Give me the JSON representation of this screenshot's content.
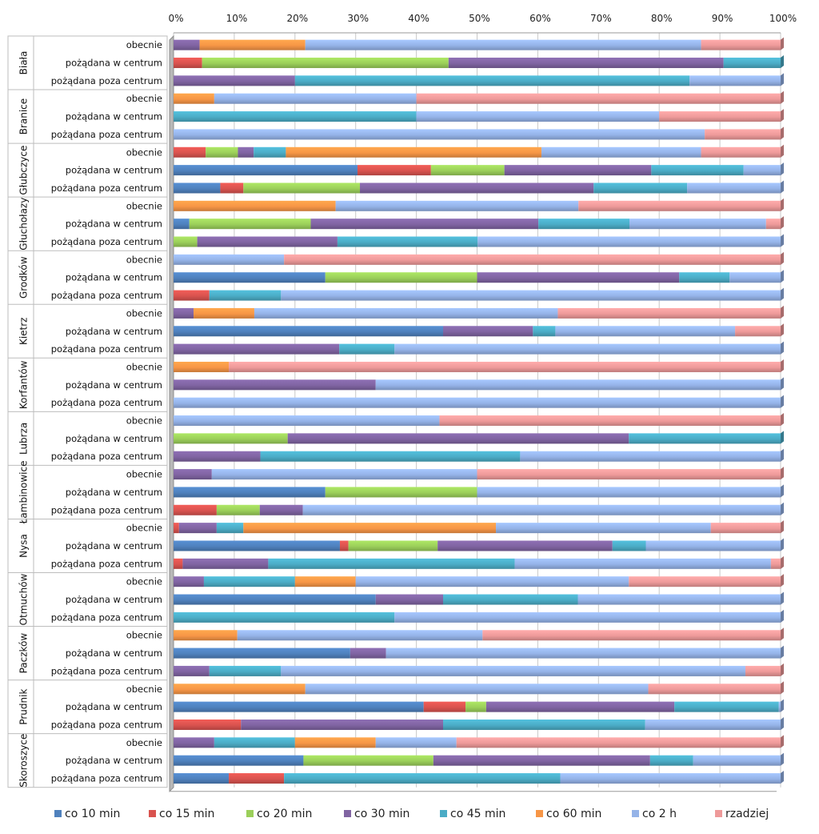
{
  "chart_data": {
    "type": "bar",
    "orientation": "horizontal",
    "stacked": "percent",
    "xlim": [
      0,
      100
    ],
    "x_ticks": [
      "0%",
      "10%",
      "20%",
      "30%",
      "40%",
      "50%",
      "60%",
      "70%",
      "80%",
      "90%",
      "100%"
    ],
    "legend_position": "bottom",
    "grid": true,
    "series": [
      {
        "name": "co 10 min",
        "color": "#4f81bd"
      },
      {
        "name": "co 15 min",
        "color": "#d9534f"
      },
      {
        "name": "co 20 min",
        "color": "#9bcf5a"
      },
      {
        "name": "co 30 min",
        "color": "#8064a2"
      },
      {
        "name": "co 45 min",
        "color": "#4bacc6"
      },
      {
        "name": "co 60 min",
        "color": "#f79646"
      },
      {
        "name": "co 2 h",
        "color": "#95b3e8"
      },
      {
        "name": "rzadziej",
        "color": "#ee9a9a"
      }
    ],
    "groups": [
      {
        "name": "Biała",
        "rows": [
          {
            "label": "obecnie",
            "values": [
              0,
              0,
              0,
              4.3,
              0,
              17.4,
              65.2,
              13.1
            ]
          },
          {
            "label": "pożądana w centrum",
            "values": [
              0,
              4.7,
              40.6,
              45.3,
              9.4,
              0,
              0,
              0
            ]
          },
          {
            "label": "pożądana poza centrum",
            "values": [
              0,
              0,
              0,
              20.0,
              65.0,
              0,
              15.0,
              0
            ]
          }
        ]
      },
      {
        "name": "Branice",
        "rows": [
          {
            "label": "obecnie",
            "values": [
              0,
              0,
              0,
              0,
              0,
              6.7,
              33.3,
              60.0
            ]
          },
          {
            "label": "pożądana w centrum",
            "values": [
              0,
              0,
              0,
              0,
              40.0,
              0,
              40.0,
              20.0
            ]
          },
          {
            "label": "pożądana poza centrum",
            "values": [
              0,
              0,
              0,
              0,
              0,
              0,
              87.5,
              12.5
            ]
          }
        ]
      },
      {
        "name": "Głubczyce",
        "rows": [
          {
            "label": "obecnie",
            "values": [
              0,
              5.3,
              5.3,
              2.6,
              5.3,
              42.1,
              26.3,
              13.1
            ]
          },
          {
            "label": "pożądana w centrum",
            "values": [
              30.3,
              12.1,
              12.1,
              24.2,
              15.2,
              0,
              6.1,
              0
            ]
          },
          {
            "label": "pożądana poza centrum",
            "values": [
              7.7,
              3.8,
              19.2,
              38.5,
              15.4,
              0,
              15.4,
              0
            ]
          }
        ]
      },
      {
        "name": "Głuchołazy",
        "rows": [
          {
            "label": "obecnie",
            "values": [
              0,
              0,
              0,
              0,
              0,
              26.7,
              40.0,
              33.3
            ]
          },
          {
            "label": "pożądana w centrum",
            "values": [
              2.6,
              0,
              20.0,
              37.5,
              15.0,
              0,
              22.5,
              2.4
            ]
          },
          {
            "label": "pożądana poza centrum",
            "values": [
              0,
              0,
              3.9,
              23.1,
              23.1,
              0,
              49.9,
              0
            ]
          }
        ]
      },
      {
        "name": "Grodków",
        "rows": [
          {
            "label": "obecnie",
            "values": [
              0,
              0,
              0,
              0,
              0,
              0,
              18.2,
              81.8
            ]
          },
          {
            "label": "pożądana w centrum",
            "values": [
              25.0,
              0,
              25.0,
              33.3,
              8.3,
              0,
              8.4,
              0
            ]
          },
          {
            "label": "pożądana poza centrum",
            "values": [
              0,
              5.9,
              0,
              0,
              11.8,
              0,
              82.3,
              0
            ]
          }
        ]
      },
      {
        "name": "Kietrz",
        "rows": [
          {
            "label": "obecnie",
            "values": [
              0,
              0,
              0,
              3.3,
              0,
              10.0,
              50.0,
              36.7
            ]
          },
          {
            "label": "pożądana w centrum",
            "values": [
              44.4,
              0,
              0,
              14.8,
              3.7,
              0,
              29.6,
              7.5
            ]
          },
          {
            "label": "pożądana poza centrum",
            "values": [
              0,
              0,
              0,
              27.3,
              9.1,
              0,
              63.6,
              0
            ]
          }
        ]
      },
      {
        "name": "Korfantów",
        "rows": [
          {
            "label": "obecnie",
            "values": [
              0,
              0,
              0,
              0,
              0,
              9.1,
              0,
              90.9
            ]
          },
          {
            "label": "pożądana w centrum",
            "values": [
              0,
              0,
              0,
              33.3,
              0,
              0,
              66.7,
              0
            ]
          },
          {
            "label": "pożądana poza centrum",
            "values": [
              0,
              0,
              0,
              0,
              0,
              0,
              100,
              0
            ]
          }
        ]
      },
      {
        "name": "Lubrza",
        "rows": [
          {
            "label": "obecnie",
            "values": [
              0,
              0,
              0,
              0,
              0,
              0,
              43.8,
              56.2
            ]
          },
          {
            "label": "pożądana w centrum",
            "values": [
              0,
              0,
              18.8,
              56.2,
              25.0,
              0,
              0,
              0
            ]
          },
          {
            "label": "pożądana poza centrum",
            "values": [
              0,
              0,
              0,
              14.3,
              42.8,
              0,
              42.9,
              0
            ]
          }
        ]
      },
      {
        "name": "Łambinowice",
        "rows": [
          {
            "label": "obecnie",
            "values": [
              0,
              0,
              0,
              6.3,
              0,
              0,
              43.7,
              50.0
            ]
          },
          {
            "label": "pożądana w centrum",
            "values": [
              25.0,
              0,
              25.0,
              0,
              0,
              0,
              50.0,
              0
            ]
          },
          {
            "label": "pożądana poza centrum",
            "values": [
              0,
              7.1,
              7.1,
              7.1,
              0,
              0,
              78.7,
              0
            ]
          }
        ]
      },
      {
        "name": "Nysa",
        "rows": [
          {
            "label": "obecnie",
            "values": [
              0,
              0.9,
              0,
              6.2,
              4.4,
              41.6,
              35.4,
              11.5
            ]
          },
          {
            "label": "pożądana w centrum",
            "values": [
              27.4,
              1.4,
              14.7,
              28.8,
              5.5,
              0,
              22.2,
              0
            ]
          },
          {
            "label": "pożądana poza centrum",
            "values": [
              0,
              1.5,
              0,
              14.1,
              40.6,
              0,
              42.2,
              1.6
            ]
          }
        ]
      },
      {
        "name": "Otmuchów",
        "rows": [
          {
            "label": "obecnie",
            "values": [
              0,
              0,
              0,
              5.0,
              15.0,
              10.0,
              45.0,
              25.0
            ]
          },
          {
            "label": "pożądana w centrum",
            "values": [
              33.3,
              0,
              0,
              11.1,
              22.2,
              0,
              33.4,
              0
            ]
          },
          {
            "label": "pożądana poza centrum",
            "values": [
              0,
              0,
              0,
              0,
              36.4,
              0,
              63.6,
              0
            ]
          }
        ]
      },
      {
        "name": "Paczków",
        "rows": [
          {
            "label": "obecnie",
            "values": [
              0,
              0,
              0,
              0,
              0,
              10.5,
              40.4,
              49.1
            ]
          },
          {
            "label": "pożądana w centrum",
            "values": [
              29.1,
              0,
              0,
              5.9,
              0,
              0,
              65.0,
              0
            ]
          },
          {
            "label": "pożądana poza centrum",
            "values": [
              0,
              0,
              0,
              5.9,
              11.8,
              0,
              76.5,
              5.8
            ]
          }
        ]
      },
      {
        "name": "Prudnik",
        "rows": [
          {
            "label": "obecnie",
            "values": [
              0,
              0,
              0,
              0,
              0,
              21.7,
              56.5,
              21.8
            ]
          },
          {
            "label": "pożądana w centrum",
            "values": [
              41.2,
              6.9,
              3.4,
              31.0,
              17.2,
              0,
              0.3,
              0
            ]
          },
          {
            "label": "pożądana poza centrum",
            "values": [
              0,
              11.1,
              0,
              33.3,
              33.3,
              0,
              22.3,
              0
            ]
          }
        ]
      },
      {
        "name": "Skoroszyce",
        "rows": [
          {
            "label": "obecnie",
            "values": [
              0,
              0,
              0,
              6.7,
              13.3,
              13.3,
              13.3,
              53.4
            ]
          },
          {
            "label": "pożądana w centrum",
            "values": [
              21.4,
              0,
              21.4,
              35.7,
              7.1,
              0,
              14.4,
              0
            ]
          },
          {
            "label": "pożądana poza centrum",
            "values": [
              9.1,
              9.1,
              0,
              0,
              45.5,
              0,
              36.3,
              0
            ]
          }
        ]
      }
    ]
  }
}
